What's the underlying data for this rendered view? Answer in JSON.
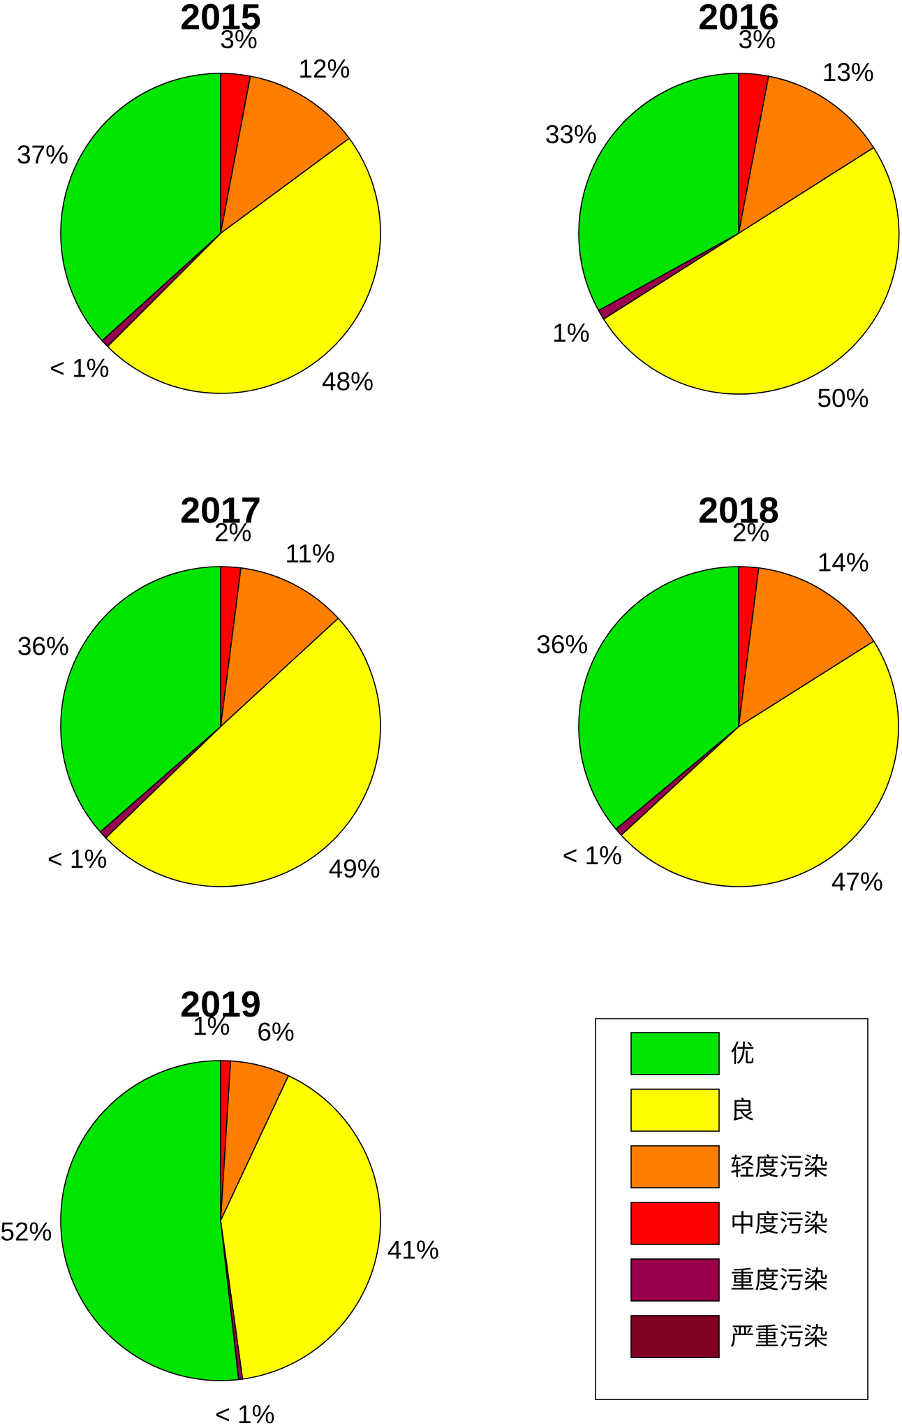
{
  "chart_data": [
    {
      "type": "pie",
      "title": "2015",
      "slices": [
        {
          "category": "中度污染",
          "value": 3,
          "label": "3%"
        },
        {
          "category": "轻度污染",
          "value": 12,
          "label": "12%"
        },
        {
          "category": "良",
          "value": 48,
          "label": "48%"
        },
        {
          "category": "重度污染",
          "value": 0.8,
          "label": "< 1%"
        },
        {
          "category": "优",
          "value": 37,
          "label": "37%"
        }
      ]
    },
    {
      "type": "pie",
      "title": "2016",
      "slices": [
        {
          "category": "中度污染",
          "value": 3,
          "label": "3%"
        },
        {
          "category": "轻度污染",
          "value": 13,
          "label": "13%"
        },
        {
          "category": "良",
          "value": 50,
          "label": "50%"
        },
        {
          "category": "重度污染",
          "value": 1,
          "label": "1%"
        },
        {
          "category": "优",
          "value": 33,
          "label": "33%"
        }
      ]
    },
    {
      "type": "pie",
      "title": "2017",
      "slices": [
        {
          "category": "中度污染",
          "value": 2,
          "label": "2%"
        },
        {
          "category": "轻度污染",
          "value": 11,
          "label": "11%"
        },
        {
          "category": "良",
          "value": 49,
          "label": "49%"
        },
        {
          "category": "重度污染",
          "value": 0.8,
          "label": "< 1%"
        },
        {
          "category": "优",
          "value": 36,
          "label": "36%"
        }
      ]
    },
    {
      "type": "pie",
      "title": "2018",
      "slices": [
        {
          "category": "中度污染",
          "value": 2,
          "label": "2%"
        },
        {
          "category": "轻度污染",
          "value": 14,
          "label": "14%"
        },
        {
          "category": "良",
          "value": 47,
          "label": "47%"
        },
        {
          "category": "重度污染",
          "value": 0.8,
          "label": "< 1%"
        },
        {
          "category": "优",
          "value": 36,
          "label": "36%"
        }
      ]
    },
    {
      "type": "pie",
      "title": "2019",
      "slices": [
        {
          "category": "中度污染",
          "value": 1,
          "label": "1%"
        },
        {
          "category": "轻度污染",
          "value": 6,
          "label": "6%"
        },
        {
          "category": "良",
          "value": 41,
          "label": "41%"
        },
        {
          "category": "重度污染",
          "value": 0.4,
          "label": "< 1%"
        },
        {
          "category": "优",
          "value": 52,
          "label": "52%"
        }
      ]
    }
  ],
  "legend": {
    "items": [
      {
        "label": "优",
        "color": "#00e400"
      },
      {
        "label": "良",
        "color": "#ffff00"
      },
      {
        "label": "轻度污染",
        "color": "#ff7e00"
      },
      {
        "label": "中度污染",
        "color": "#ff0000"
      },
      {
        "label": "重度污染",
        "color": "#99004c"
      },
      {
        "label": "严重污染",
        "color": "#7e0023"
      }
    ]
  }
}
